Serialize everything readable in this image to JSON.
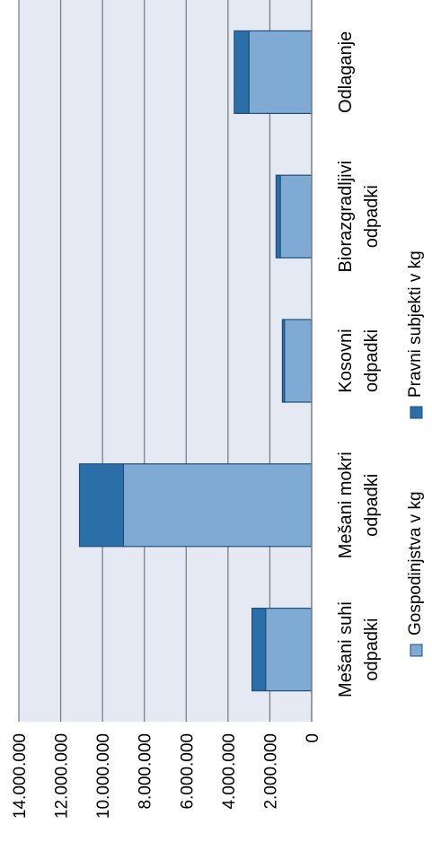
{
  "chart_data": {
    "type": "bar",
    "orientation": "rotated-stacked-bar",
    "categories": [
      [
        "Mešani suhi",
        "odpadki"
      ],
      [
        "Mešani mokri",
        "odpadki"
      ],
      [
        "Kosovni",
        "odpadki"
      ],
      [
        "Biorazgradljivi",
        "odpadki"
      ],
      [
        "Odlaganje"
      ]
    ],
    "series": [
      {
        "name": "Gospodinjstva v kg",
        "color": "#7faad4",
        "values": [
          2200000,
          9000000,
          1300000,
          1500000,
          3000000
        ]
      },
      {
        "name": "Pravni subjekti v kg",
        "color": "#2a6fa8",
        "values": [
          650000,
          2100000,
          100000,
          200000,
          700000
        ]
      }
    ],
    "yticks": [
      "0",
      "2.000.000",
      "4.000.000",
      "6.000.000",
      "8.000.000",
      "10.000.000",
      "12.000.000",
      "14.000.000"
    ],
    "ylim": [
      0,
      14000000
    ],
    "grid": true,
    "legend_position": "bottom",
    "plot_background": "#e4e9f3"
  }
}
